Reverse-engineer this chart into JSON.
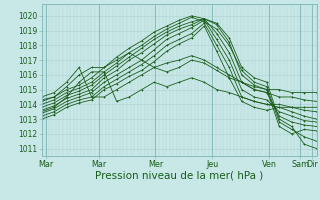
{
  "bg_color": "#c8e8e8",
  "grid_color": "#b0d0d0",
  "line_color": "#1a5c1a",
  "xlabel": "Pression niveau de la mer( hPa )",
  "xlabel_fontsize": 7.5,
  "yticks": [
    1011,
    1012,
    1013,
    1014,
    1015,
    1016,
    1017,
    1018,
    1019,
    1020
  ],
  "ylim": [
    1010.5,
    1020.8
  ],
  "xlim": [
    0,
    232
  ],
  "x_tick_pos": [
    4,
    48,
    96,
    144,
    192,
    218,
    228
  ],
  "x_tick_labels": [
    "Mar",
    "Mar",
    "Mer",
    "Jeu",
    "Ven",
    "Sam",
    "Dir"
  ],
  "lines": [
    [
      1014.2,
      1014.5,
      1015.0,
      1015.3,
      1015.8,
      1016.5,
      1017.2,
      1017.8,
      1018.3,
      1018.9,
      1019.3,
      1019.7,
      1020.0,
      1019.8,
      1019.5,
      1018.5,
      1016.5,
      1015.8,
      1015.5,
      1013.0,
      1012.5,
      1011.3,
      1011.0
    ],
    [
      1014.0,
      1014.3,
      1014.8,
      1015.1,
      1015.5,
      1016.2,
      1016.8,
      1017.5,
      1018.0,
      1018.6,
      1019.1,
      1019.5,
      1019.9,
      1019.6,
      1019.1,
      1018.0,
      1016.3,
      1015.5,
      1015.2,
      1012.8,
      1012.3,
      1011.8,
      1011.5
    ],
    [
      1013.8,
      1014.1,
      1014.6,
      1014.9,
      1015.3,
      1016.0,
      1016.6,
      1017.2,
      1017.8,
      1018.4,
      1018.9,
      1019.3,
      1019.6,
      1019.8,
      1019.4,
      1018.2,
      1016.0,
      1015.3,
      1015.0,
      1012.5,
      1012.0,
      1012.3,
      1012.2
    ],
    [
      1013.6,
      1013.9,
      1014.4,
      1014.7,
      1015.0,
      1015.8,
      1016.3,
      1017.0,
      1017.5,
      1018.1,
      1018.7,
      1019.1,
      1019.4,
      1019.8,
      1018.8,
      1017.5,
      1015.5,
      1015.0,
      1014.8,
      1013.2,
      1012.8,
      1012.6,
      1012.5
    ],
    [
      1013.4,
      1013.7,
      1014.2,
      1014.5,
      1014.8,
      1015.5,
      1016.0,
      1016.5,
      1017.0,
      1017.7,
      1018.4,
      1018.8,
      1019.2,
      1019.7,
      1018.4,
      1017.0,
      1015.0,
      1014.5,
      1014.3,
      1013.5,
      1013.2,
      1012.9,
      1012.8
    ],
    [
      1013.2,
      1013.5,
      1014.0,
      1014.3,
      1014.5,
      1015.2,
      1015.7,
      1016.2,
      1016.7,
      1017.3,
      1018.0,
      1018.4,
      1018.8,
      1019.5,
      1018.0,
      1016.5,
      1014.5,
      1014.2,
      1014.0,
      1013.8,
      1013.5,
      1013.2,
      1013.0
    ],
    [
      1013.0,
      1013.3,
      1013.8,
      1014.1,
      1014.3,
      1015.0,
      1015.4,
      1015.9,
      1016.3,
      1016.9,
      1017.6,
      1018.1,
      1018.5,
      1019.3,
      1017.6,
      1015.8,
      1014.2,
      1013.8,
      1013.6,
      1013.8,
      1013.8,
      1013.6,
      1013.5
    ],
    [
      1014.3,
      1014.5,
      1015.2,
      1016.0,
      1016.5,
      1016.5,
      1017.0,
      1017.5,
      1017.0,
      1016.5,
      1016.2,
      1016.5,
      1017.0,
      1016.8,
      1016.3,
      1015.8,
      1015.5,
      1015.2,
      1015.0,
      1015.0,
      1014.8,
      1014.8,
      1014.8
    ],
    [
      1013.5,
      1013.8,
      1014.5,
      1015.5,
      1016.2,
      1016.2,
      1014.2,
      1014.5,
      1015.0,
      1015.5,
      1015.2,
      1015.5,
      1015.8,
      1015.5,
      1015.0,
      1014.8,
      1014.5,
      1014.2,
      1014.0,
      1014.0,
      1013.8,
      1013.8,
      1013.8
    ],
    [
      1014.5,
      1014.8,
      1015.5,
      1016.5,
      1014.5,
      1014.5,
      1015.0,
      1015.5,
      1016.0,
      1016.5,
      1016.8,
      1017.0,
      1017.3,
      1017.0,
      1016.5,
      1016.0,
      1015.5,
      1015.0,
      1014.8,
      1014.5,
      1014.5,
      1014.3,
      1014.2
    ]
  ],
  "num_points": 23,
  "day_sep_x": [
    4,
    48,
    96,
    144,
    192,
    218,
    228
  ]
}
